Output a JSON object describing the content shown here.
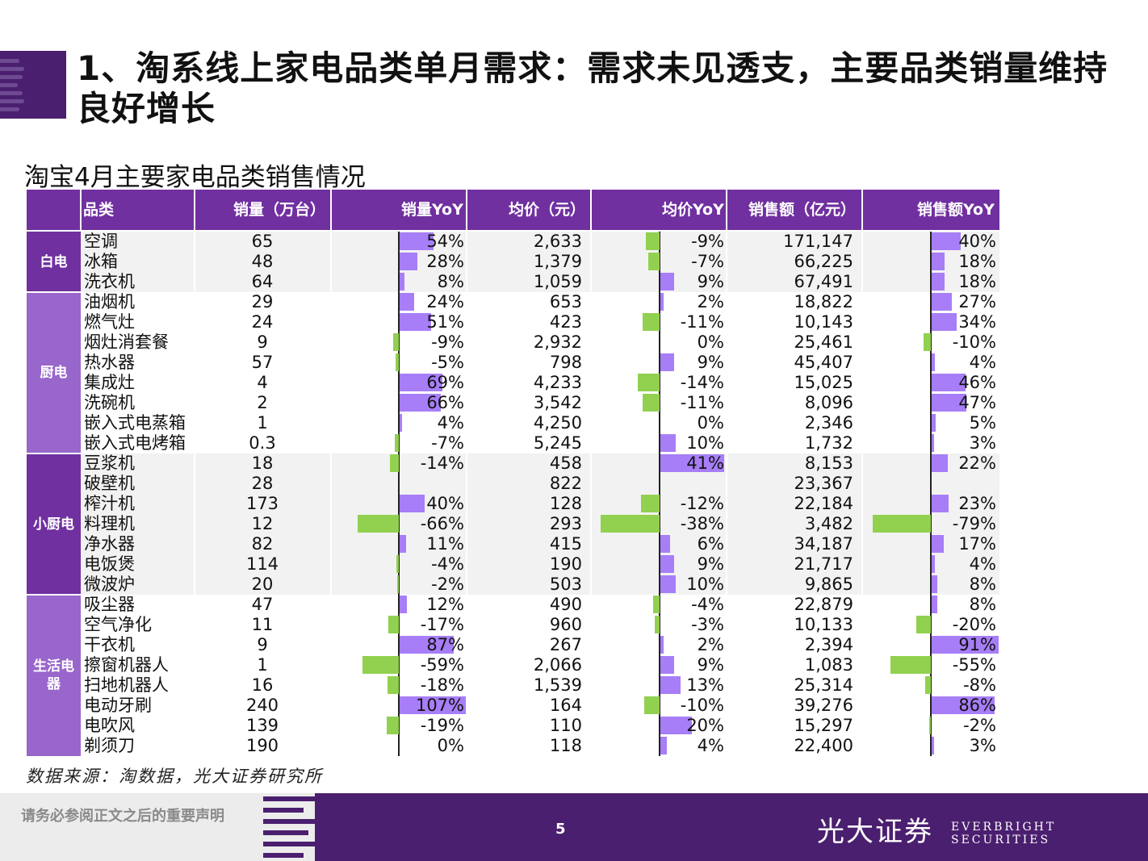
{
  "title": "1、淘系线上家电品类单月需求：需求未见透支，主要品类销量维持良好增长",
  "subtitle": "淘宝4月主要家电品类销售情况",
  "table": {
    "headers": [
      "品类",
      "销量（万台）",
      "销量YoY",
      "均价（元）",
      "均价YoY",
      "销售额（亿元）",
      "销售额YoY"
    ],
    "groups": [
      {
        "name": "白电",
        "start": 0,
        "count": 3
      },
      {
        "name": "厨电",
        "start": 3,
        "count": 8
      },
      {
        "name": "小厨电",
        "start": 11,
        "count": 7
      },
      {
        "name": "生活电器",
        "start": 18,
        "count": 8
      }
    ],
    "rows": [
      {
        "name": "空调",
        "vol": "65",
        "vol_yoy": "54%",
        "vol_yoy_v": 54,
        "price": "2,633",
        "price_yoy": "-9%",
        "price_yoy_v": -9,
        "sales": "171,147",
        "sales_yoy": "40%",
        "sales_yoy_v": 40
      },
      {
        "name": "冰箱",
        "vol": "48",
        "vol_yoy": "28%",
        "vol_yoy_v": 28,
        "price": "1,379",
        "price_yoy": "-7%",
        "price_yoy_v": -7,
        "sales": "66,225",
        "sales_yoy": "18%",
        "sales_yoy_v": 18
      },
      {
        "name": "洗衣机",
        "vol": "64",
        "vol_yoy": "8%",
        "vol_yoy_v": 8,
        "price": "1,059",
        "price_yoy": "9%",
        "price_yoy_v": 9,
        "sales": "67,491",
        "sales_yoy": "18%",
        "sales_yoy_v": 18
      },
      {
        "name": "油烟机",
        "vol": "29",
        "vol_yoy": "24%",
        "vol_yoy_v": 24,
        "price": "653",
        "price_yoy": "2%",
        "price_yoy_v": 2,
        "sales": "18,822",
        "sales_yoy": "27%",
        "sales_yoy_v": 27
      },
      {
        "name": "燃气灶",
        "vol": "24",
        "vol_yoy": "51%",
        "vol_yoy_v": 51,
        "price": "423",
        "price_yoy": "-11%",
        "price_yoy_v": -11,
        "sales": "10,143",
        "sales_yoy": "34%",
        "sales_yoy_v": 34
      },
      {
        "name": "烟灶消套餐",
        "vol": "9",
        "vol_yoy": "-9%",
        "vol_yoy_v": -9,
        "price": "2,932",
        "price_yoy": "0%",
        "price_yoy_v": 0,
        "sales": "25,461",
        "sales_yoy": "-10%",
        "sales_yoy_v": -10
      },
      {
        "name": "热水器",
        "vol": "57",
        "vol_yoy": "-5%",
        "vol_yoy_v": -5,
        "price": "798",
        "price_yoy": "9%",
        "price_yoy_v": 9,
        "sales": "45,407",
        "sales_yoy": "4%",
        "sales_yoy_v": 4
      },
      {
        "name": "集成灶",
        "vol": "4",
        "vol_yoy": "69%",
        "vol_yoy_v": 69,
        "price": "4,233",
        "price_yoy": "-14%",
        "price_yoy_v": -14,
        "sales": "15,025",
        "sales_yoy": "46%",
        "sales_yoy_v": 46
      },
      {
        "name": "洗碗机",
        "vol": "2",
        "vol_yoy": "66%",
        "vol_yoy_v": 66,
        "price": "3,542",
        "price_yoy": "-11%",
        "price_yoy_v": -11,
        "sales": "8,096",
        "sales_yoy": "47%",
        "sales_yoy_v": 47
      },
      {
        "name": "嵌入式电蒸箱",
        "vol": "1",
        "vol_yoy": "4%",
        "vol_yoy_v": 4,
        "price": "4,250",
        "price_yoy": "0%",
        "price_yoy_v": 0,
        "sales": "2,346",
        "sales_yoy": "5%",
        "sales_yoy_v": 5
      },
      {
        "name": "嵌入式电烤箱",
        "vol": "0.3",
        "vol_yoy": "-7%",
        "vol_yoy_v": -7,
        "price": "5,245",
        "price_yoy": "10%",
        "price_yoy_v": 10,
        "sales": "1,732",
        "sales_yoy": "3%",
        "sales_yoy_v": 3
      },
      {
        "name": "豆浆机",
        "vol": "18",
        "vol_yoy": "-14%",
        "vol_yoy_v": -14,
        "price": "458",
        "price_yoy": "41%",
        "price_yoy_v": 41,
        "sales": "8,153",
        "sales_yoy": "22%",
        "sales_yoy_v": 22
      },
      {
        "name": "破壁机",
        "vol": "28",
        "vol_yoy": "",
        "vol_yoy_v": 0,
        "price": "822",
        "price_yoy": "",
        "price_yoy_v": 0,
        "sales": "23,367",
        "sales_yoy": "",
        "sales_yoy_v": 0
      },
      {
        "name": "榨汁机",
        "vol": "173",
        "vol_yoy": "40%",
        "vol_yoy_v": 40,
        "price": "128",
        "price_yoy": "-12%",
        "price_yoy_v": -12,
        "sales": "22,184",
        "sales_yoy": "23%",
        "sales_yoy_v": 23
      },
      {
        "name": "料理机",
        "vol": "12",
        "vol_yoy": "-66%",
        "vol_yoy_v": -66,
        "price": "293",
        "price_yoy": "-38%",
        "price_yoy_v": -38,
        "sales": "3,482",
        "sales_yoy": "-79%",
        "sales_yoy_v": -79
      },
      {
        "name": "净水器",
        "vol": "82",
        "vol_yoy": "11%",
        "vol_yoy_v": 11,
        "price": "415",
        "price_yoy": "6%",
        "price_yoy_v": 6,
        "sales": "34,187",
        "sales_yoy": "17%",
        "sales_yoy_v": 17
      },
      {
        "name": "电饭煲",
        "vol": "114",
        "vol_yoy": "-4%",
        "vol_yoy_v": -4,
        "price": "190",
        "price_yoy": "9%",
        "price_yoy_v": 9,
        "sales": "21,717",
        "sales_yoy": "4%",
        "sales_yoy_v": 4
      },
      {
        "name": "微波炉",
        "vol": "20",
        "vol_yoy": "-2%",
        "vol_yoy_v": -2,
        "price": "503",
        "price_yoy": "10%",
        "price_yoy_v": 10,
        "sales": "9,865",
        "sales_yoy": "8%",
        "sales_yoy_v": 8
      },
      {
        "name": "吸尘器",
        "vol": "47",
        "vol_yoy": "12%",
        "vol_yoy_v": 12,
        "price": "490",
        "price_yoy": "-4%",
        "price_yoy_v": -4,
        "sales": "22,879",
        "sales_yoy": "8%",
        "sales_yoy_v": 8
      },
      {
        "name": "空气净化",
        "vol": "11",
        "vol_yoy": "-17%",
        "vol_yoy_v": -17,
        "price": "960",
        "price_yoy": "-3%",
        "price_yoy_v": -3,
        "sales": "10,133",
        "sales_yoy": "-20%",
        "sales_yoy_v": -20
      },
      {
        "name": "干衣机",
        "vol": "9",
        "vol_yoy": "87%",
        "vol_yoy_v": 87,
        "price": "267",
        "price_yoy": "2%",
        "price_yoy_v": 2,
        "sales": "2,394",
        "sales_yoy": "91%",
        "sales_yoy_v": 91
      },
      {
        "name": "擦窗机器人",
        "vol": "1",
        "vol_yoy": "-59%",
        "vol_yoy_v": -59,
        "price": "2,066",
        "price_yoy": "9%",
        "price_yoy_v": 9,
        "sales": "1,083",
        "sales_yoy": "-55%",
        "sales_yoy_v": -55
      },
      {
        "name": "扫地机器人",
        "vol": "16",
        "vol_yoy": "-18%",
        "vol_yoy_v": -18,
        "price": "1,539",
        "price_yoy": "13%",
        "price_yoy_v": 13,
        "sales": "25,314",
        "sales_yoy": "-8%",
        "sales_yoy_v": -8
      },
      {
        "name": "电动牙刷",
        "vol": "240",
        "vol_yoy": "107%",
        "vol_yoy_v": 107,
        "price": "164",
        "price_yoy": "-10%",
        "price_yoy_v": -10,
        "sales": "39,276",
        "sales_yoy": "86%",
        "sales_yoy_v": 86
      },
      {
        "name": "电吹风",
        "vol": "139",
        "vol_yoy": "-19%",
        "vol_yoy_v": -19,
        "price": "110",
        "price_yoy": "20%",
        "price_yoy_v": 20,
        "sales": "15,297",
        "sales_yoy": "-2%",
        "sales_yoy_v": -2
      },
      {
        "name": "剃须刀",
        "vol": "190",
        "vol_yoy": "0%",
        "vol_yoy_v": 0,
        "price": "118",
        "price_yoy": "4%",
        "price_yoy_v": 4,
        "sales": "22,400",
        "sales_yoy": "3%",
        "sales_yoy_v": 3
      }
    ]
  },
  "source": "数据来源：淘数据，光大证券研究所",
  "footer": {
    "notice": "请务必参阅正文之后的重要声明",
    "page": "5",
    "brand_cn": "光大证券",
    "brand_en": "EVERBRIGHT SECURITIES"
  },
  "colors": {
    "header": "#7030a0",
    "group_light": "#9966cc",
    "positive_bar": "#a77ef7",
    "negative_bar": "#92d050",
    "footer": "#4b1f6f"
  }
}
